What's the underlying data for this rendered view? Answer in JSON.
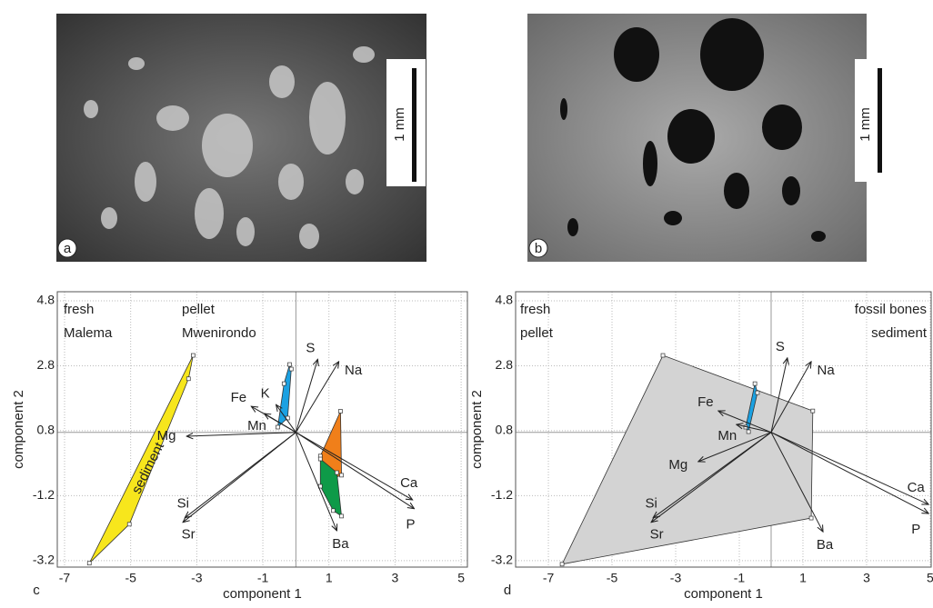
{
  "photos": [
    {
      "label": "a",
      "scale_bar": "1 mm"
    },
    {
      "label": "b",
      "scale_bar": "1 mm"
    }
  ],
  "chart_data": [
    {
      "type": "biplot",
      "panel": "c",
      "xlabel": "component 1",
      "ylabel": "component 2",
      "xlim": [
        -7.22,
        5.19
      ],
      "ylim": [
        -3.4,
        5.08
      ],
      "xticks": [
        -7,
        -5,
        -3,
        -1,
        1,
        3,
        5
      ],
      "yticks": [
        4.8,
        2.8,
        0.8,
        -1.2,
        -3.2
      ],
      "grid": true,
      "origin": [
        0,
        0.75
      ],
      "legend": [
        {
          "text": "fresh",
          "color": "#222222"
        },
        {
          "text": "pellet",
          "color": "#1ba1e2"
        },
        {
          "text": "Malema",
          "color": "#f07f1a"
        },
        {
          "text": "Mwenirondo",
          "color": "#0e9a48"
        }
      ],
      "arrows": {
        "names": [
          "Mg",
          "Fe",
          "K",
          "Mn",
          "S",
          "Na",
          "Ca",
          "P",
          "Ba",
          "Si",
          "Sr"
        ],
        "x": [
          -3.31,
          -1.35,
          -0.6,
          -0.96,
          0.66,
          1.3,
          3.53,
          3.58,
          1.24,
          -3.36,
          -3.42
        ],
        "y": [
          0.63,
          1.55,
          1.6,
          1.33,
          3.0,
          2.93,
          -1.33,
          -1.6,
          -2.28,
          -1.88,
          -2.02
        ]
      },
      "polygons": [
        {
          "name": "sediment",
          "color": "#f7e61c",
          "x": [
            -3.11,
            -3.25,
            -5.04,
            -6.25
          ],
          "y": [
            3.12,
            2.4,
            -2.08,
            -3.28
          ]
        },
        {
          "color": "#1ba1e2",
          "x": [
            -0.36,
            -0.19,
            -0.14,
            -0.25,
            -0.55
          ],
          "y": [
            2.25,
            2.84,
            2.7,
            1.19,
            0.91
          ]
        },
        {
          "color": "#f07f1a",
          "x": [
            1.35,
            1.38,
            0.85,
            0.74
          ],
          "y": [
            1.4,
            -0.57,
            -0.77,
            0.02
          ]
        },
        {
          "color": "#0e9a48",
          "x": [
            0.74,
            1.24,
            1.38,
            1.13,
            0.74
          ],
          "y": [
            -0.07,
            -0.49,
            -1.83,
            -1.66,
            -0.91
          ]
        }
      ]
    },
    {
      "type": "biplot",
      "panel": "d",
      "xlabel": "component 1",
      "ylabel": "component 2",
      "xlim": [
        -8.03,
        5.03
      ],
      "ylim": [
        -3.4,
        5.08
      ],
      "xticks": [
        -7,
        -5,
        -3,
        -1,
        1,
        3,
        5
      ],
      "yticks": [
        4.8,
        2.8,
        0.8,
        -1.2,
        -3.2
      ],
      "grid": true,
      "origin": [
        0,
        0.75
      ],
      "legend": [
        {
          "text": "fresh",
          "color": "#222222"
        },
        {
          "text": "pellet",
          "color": "#1ba1e2"
        },
        {
          "text": "fossil bones",
          "color": "#aaaaaa"
        },
        {
          "text": "sediment",
          "color": "#aaaaaa"
        }
      ],
      "arrows": {
        "names": [
          "Mg",
          "Fe",
          "Mn",
          "S",
          "Na",
          "Ca",
          "P",
          "Ba",
          "Si",
          "Sr"
        ],
        "x": [
          -2.29,
          -1.66,
          -1.09,
          0.51,
          1.26,
          4.95,
          4.95,
          1.63,
          -3.71,
          -3.77
        ],
        "y": [
          -0.15,
          1.41,
          0.99,
          3.04,
          2.93,
          -1.47,
          -1.75,
          -2.31,
          -1.88,
          -2.02
        ]
      },
      "polygons": [
        {
          "color": "#d3d3d3",
          "x": [
            -6.57,
            -3.4,
            1.31,
            1.26
          ],
          "y": [
            -3.31,
            3.12,
            1.41,
            -1.89
          ]
        },
        {
          "color": "#1ba1e2",
          "x": [
            -0.51,
            -0.43,
            -0.71,
            -0.8
          ],
          "y": [
            2.25,
            1.97,
            0.77,
            0.91
          ]
        }
      ]
    }
  ]
}
